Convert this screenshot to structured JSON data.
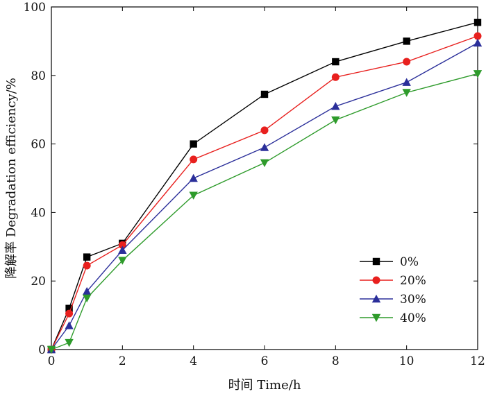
{
  "chart_data": {
    "type": "line",
    "xlabel": "时间 Time/h",
    "ylabel": "降解率 Degradation efficiency/%",
    "xlim": [
      0,
      12
    ],
    "ylim": [
      0,
      100
    ],
    "xticks": [
      0,
      2,
      4,
      6,
      8,
      10,
      12
    ],
    "yticks": [
      0,
      20,
      40,
      60,
      80,
      100
    ],
    "grid": false,
    "legend_position": "bottom-right",
    "x": [
      0,
      0.5,
      1,
      2,
      4,
      6,
      8,
      10,
      12
    ],
    "series": [
      {
        "name": "0%",
        "color": "#000000",
        "marker": "square",
        "values": [
          0,
          12,
          27,
          31,
          60,
          74.5,
          84,
          90,
          95.5
        ]
      },
      {
        "name": "20%",
        "color": "#e8201e",
        "marker": "circle",
        "values": [
          0,
          10.5,
          24.5,
          30.5,
          55.5,
          64,
          79.5,
          84,
          91.5
        ]
      },
      {
        "name": "30%",
        "color": "#2b2f9a",
        "marker": "triangle-up",
        "values": [
          0,
          7,
          17,
          29,
          50,
          59,
          71,
          78,
          89.5
        ]
      },
      {
        "name": "40%",
        "color": "#2e9b2b",
        "marker": "triangle-down",
        "values": [
          0,
          2,
          15,
          26,
          45,
          54.5,
          67,
          75,
          80.5
        ]
      }
    ]
  }
}
